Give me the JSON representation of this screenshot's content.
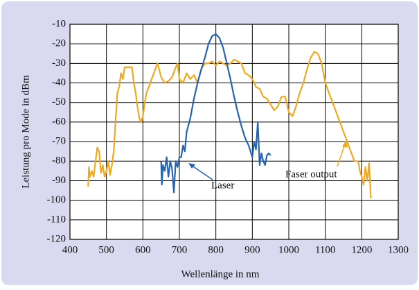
{
  "chart_data": {
    "type": "line",
    "xlabel": "Wellenlänge in nm",
    "ylabel": "Leistung pro Mode in dBm",
    "xlim": [
      400,
      1300
    ],
    "xticks": [
      400,
      500,
      600,
      700,
      800,
      900,
      1000,
      1100,
      1200,
      1300
    ],
    "ylim": [
      -120,
      -10
    ],
    "yticks": [
      -10,
      -20,
      -30,
      -40,
      -50,
      -60,
      -70,
      -80,
      -90,
      -100,
      -110,
      -120
    ],
    "grid": true,
    "annotations": [
      "Laser",
      "Faser output"
    ],
    "series": [
      {
        "name": "Faser output",
        "color": "#f2a81d",
        "x": [
          450,
          452,
          455,
          460,
          465,
          470,
          475,
          480,
          485,
          490,
          495,
          500,
          505,
          510,
          515,
          520,
          525,
          530,
          535,
          540,
          545,
          550,
          560,
          570,
          575,
          580,
          585,
          590,
          595,
          600,
          605,
          610,
          620,
          630,
          640,
          650,
          660,
          670,
          680,
          690,
          695,
          700,
          710,
          720,
          730,
          740,
          750,
          760,
          770,
          780,
          790,
          800,
          810,
          820,
          830,
          840,
          850,
          860,
          870,
          880,
          890,
          900,
          910,
          920,
          930,
          940,
          950,
          960,
          970,
          980,
          990,
          1000,
          1010,
          1020,
          1030,
          1040,
          1050,
          1060,
          1070,
          1080,
          1090,
          1100,
          1110,
          1120,
          1130,
          1140,
          1150,
          1160,
          1170,
          1180,
          1190,
          1195,
          1200,
          1205,
          1210,
          1215,
          1220,
          1225
        ],
        "values": [
          -93,
          -83,
          -88,
          -85,
          -88,
          -80,
          -73,
          -75,
          -86,
          -82,
          -88,
          -85,
          -80,
          -87,
          -82,
          -75,
          -60,
          -45,
          -42,
          -35,
          -38,
          -32,
          -32,
          -32,
          -40,
          -45,
          -52,
          -58,
          -60,
          -57,
          -50,
          -45,
          -40,
          -35,
          -30,
          -37,
          -40,
          -39,
          -37,
          -32,
          -30,
          -38,
          -40,
          -35,
          -38,
          -36,
          -40,
          -33,
          -30,
          -30,
          -29,
          -31,
          -29,
          -30,
          -31,
          -30,
          -28,
          -29,
          -30,
          -35,
          -36,
          -38,
          -42,
          -43,
          -47,
          -48,
          -51,
          -54,
          -52,
          -47,
          -47,
          -55,
          -57,
          -52,
          -45,
          -40,
          -33,
          -27,
          -24,
          -25,
          -30,
          -40,
          -45,
          -50,
          -55,
          -60,
          -65,
          -70,
          -75,
          -80,
          -80,
          -85,
          -88,
          -92,
          -83,
          -90,
          -81,
          -99
        ]
      },
      {
        "name": "Laser",
        "color": "#2464b0",
        "x": [
          650,
          652,
          655,
          660,
          665,
          670,
          675,
          680,
          685,
          690,
          695,
          700,
          705,
          710,
          715,
          720,
          730,
          740,
          750,
          760,
          770,
          780,
          790,
          800,
          810,
          820,
          830,
          840,
          850,
          860,
          870,
          880,
          890,
          900,
          905,
          910,
          915,
          920,
          925,
          930,
          935,
          940,
          945,
          950
        ],
        "values": [
          -80,
          -92,
          -82,
          -85,
          -78,
          -88,
          -80,
          -84,
          -96,
          -80,
          -83,
          -78,
          -78,
          -72,
          -75,
          -65,
          -58,
          -48,
          -40,
          -33,
          -27,
          -20,
          -16,
          -15,
          -17,
          -22,
          -30,
          -38,
          -47,
          -55,
          -62,
          -68,
          -72,
          -78,
          -70,
          -74,
          -60,
          -82,
          -76,
          -80,
          -82,
          -77,
          -76,
          -77
        ]
      }
    ]
  }
}
